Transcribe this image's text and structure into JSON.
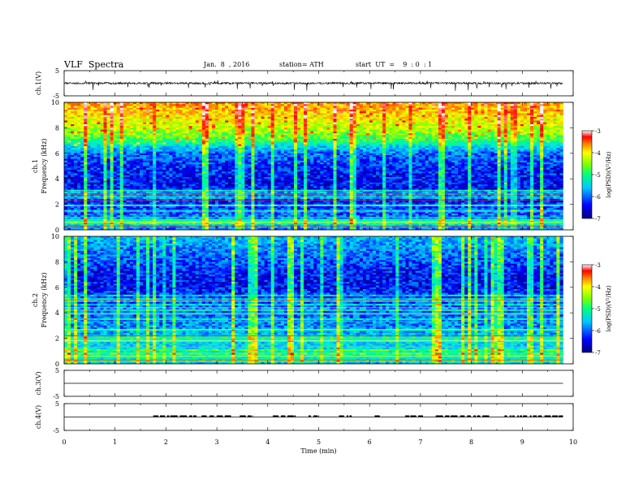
{
  "header": {
    "title": "VLF  Spectra",
    "date": "Jan.  8  , 2016",
    "station": "station= ATH",
    "start": "start  UT  =    9  : 0  : 1"
  },
  "colorbar": {
    "label": "log(PSD)(V²/Hz)",
    "ticks": [
      "-3",
      "-4",
      "-5",
      "-6",
      "-7"
    ],
    "range": [
      -7,
      -3
    ]
  },
  "chart_data": [
    {
      "type": "line",
      "panel": "ch1-waveform",
      "ylabel": "ch.1(V)",
      "ylim": [
        -5,
        5
      ],
      "yticks": [
        "5",
        "-5"
      ],
      "xlim": [
        0,
        10
      ],
      "x_extent_min": [
        0,
        9.8
      ],
      "description_values": {
        "baseline_v": 0.0,
        "noise_amplitude_v": 0.4,
        "spike_amplitude_v": -2.0
      }
    },
    {
      "type": "heatmap",
      "panel": "ch1-spectrogram",
      "ylabel": "ch.1\nFrequency  (kHz)",
      "ylim": [
        0,
        10
      ],
      "yticks": [
        "0",
        "2",
        "4",
        "6",
        "8",
        "10"
      ],
      "xlim": [
        0,
        10
      ],
      "x_extent_min": [
        0,
        9.8
      ],
      "profile_khz": [
        0,
        0.5,
        1,
        2,
        3,
        4,
        5,
        6,
        6.5,
        7,
        8,
        9,
        10
      ],
      "profile_logpsd": [
        -6.3,
        -5.8,
        -6.3,
        -6.5,
        -6.6,
        -6.6,
        -6.5,
        -6.3,
        -5.9,
        -5.3,
        -4.8,
        -4.5,
        -4.2
      ]
    },
    {
      "type": "heatmap",
      "panel": "ch2-spectrogram",
      "ylabel": "ch.2\nFrequency  (kHz)",
      "ylim": [
        0,
        10
      ],
      "yticks": [
        "0",
        "2",
        "4",
        "6",
        "8",
        "10"
      ],
      "xlim": [
        0,
        10
      ],
      "x_extent_min": [
        0,
        9.8
      ],
      "profile_khz": [
        0,
        0.5,
        1,
        2,
        3,
        4,
        5,
        6,
        7,
        8,
        9,
        10
      ],
      "profile_logpsd": [
        -6.0,
        -5.6,
        -5.8,
        -6.0,
        -6.2,
        -6.3,
        -6.4,
        -6.6,
        -6.6,
        -6.4,
        -6.2,
        -6.0
      ]
    },
    {
      "type": "line",
      "panel": "ch3-waveform",
      "ylabel": "ch.3(V)",
      "ylim": [
        -5,
        5
      ],
      "yticks": [
        "5",
        "-5"
      ],
      "xlim": [
        0,
        10
      ],
      "x_extent_min": [
        0,
        9.8
      ],
      "values_v": [
        0
      ]
    },
    {
      "type": "line",
      "panel": "ch4-waveform",
      "ylabel": "ch.4(V)",
      "ylim": [
        -5,
        5
      ],
      "yticks": [
        "5",
        "-5"
      ],
      "xlim": [
        0,
        10
      ],
      "x_extent_min": [
        0,
        9.8
      ],
      "baseline_v": 0,
      "pulse_level_v": 0.6,
      "pulse_intervals_min": [
        [
          1.75,
          2.6
        ],
        [
          2.7,
          3.3
        ],
        [
          3.45,
          3.7
        ],
        [
          4.1,
          4.55
        ],
        [
          4.8,
          5.0
        ],
        [
          5.4,
          5.65
        ],
        [
          6.1,
          6.2
        ],
        [
          6.7,
          7.05
        ],
        [
          7.3,
          8.4
        ],
        [
          8.65,
          9.8
        ]
      ]
    }
  ],
  "xaxis": {
    "label": "Time  (min)",
    "ticks": [
      "0",
      "1",
      "2",
      "3",
      "4",
      "5",
      "6",
      "7",
      "8",
      "9",
      "10"
    ]
  }
}
